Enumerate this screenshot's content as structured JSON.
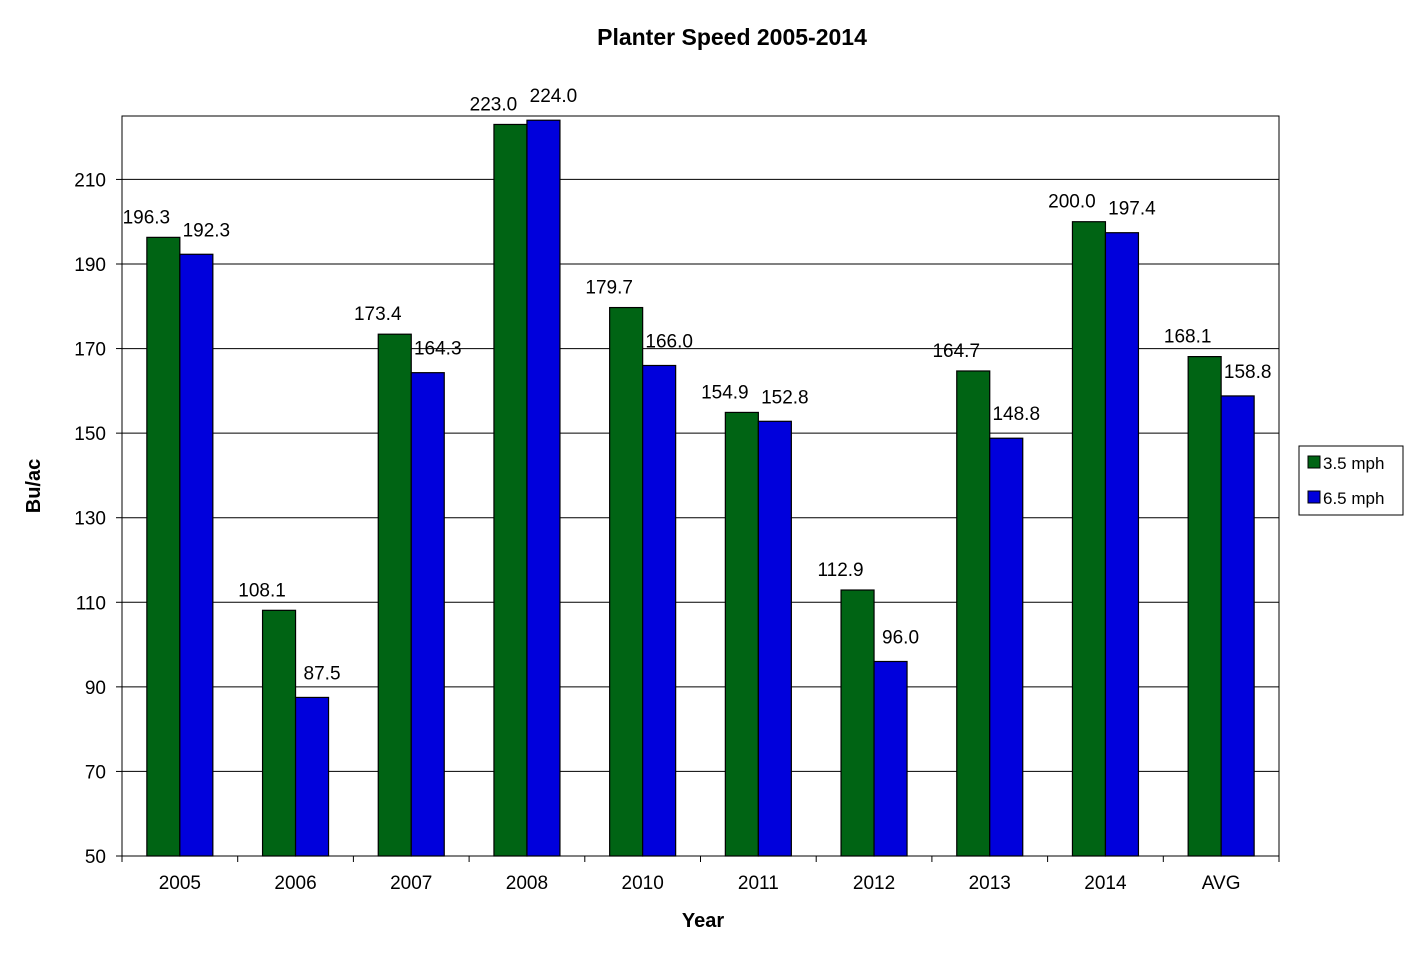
{
  "chart_data": {
    "type": "bar",
    "title": "Planter Speed 2005-2014",
    "xlabel": "Year",
    "ylabel": "Bu/ac",
    "categories": [
      "2005",
      "2006",
      "2007",
      "2008",
      "2010",
      "2011",
      "2012",
      "2013",
      "2014",
      "AVG"
    ],
    "series": [
      {
        "name": "3.5 mph",
        "color": "#006414",
        "values": [
          196.3,
          108.1,
          173.4,
          223.0,
          179.7,
          154.9,
          112.9,
          164.7,
          200.0,
          168.1
        ],
        "labels": [
          "196.3",
          "108.1",
          "173.4",
          "223.0",
          "179.7",
          "154.9",
          "112.9",
          "164.7",
          "200.0",
          "168.1"
        ]
      },
      {
        "name": "6.5 mph",
        "color": "#0000dc",
        "values": [
          192.3,
          87.5,
          164.3,
          224.0,
          166.0,
          152.8,
          96.0,
          148.8,
          197.4,
          158.8
        ],
        "labels": [
          "192.3",
          "87.5",
          "164.3",
          "224.0",
          "166.0",
          "152.8",
          "96.0",
          "148.8",
          "197.4",
          "158.8"
        ]
      }
    ],
    "ylim": [
      50,
      225
    ],
    "yticks": [
      50,
      70,
      90,
      110,
      130,
      150,
      170,
      190,
      210
    ],
    "grid": true,
    "legend": "right"
  }
}
